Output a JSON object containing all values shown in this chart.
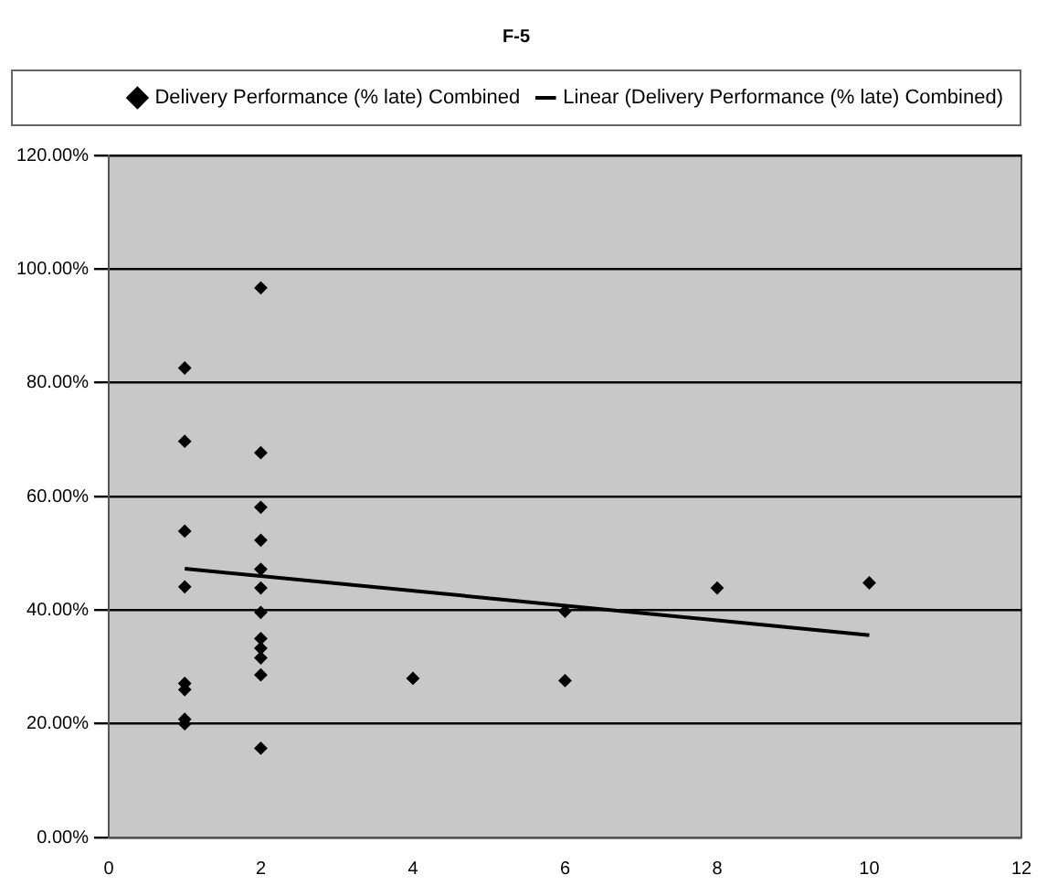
{
  "chart_data": {
    "type": "scatter",
    "title": "F-5",
    "series": [
      {
        "name": "Delivery Performance (% late) Combined",
        "marker": "diamond",
        "color": "#000000",
        "x": [
          1,
          1,
          1,
          1,
          1,
          1,
          1,
          1,
          2,
          2,
          2,
          2,
          2,
          2,
          2,
          2,
          2,
          2,
          2,
          2,
          4,
          6,
          6,
          8,
          10
        ],
        "values": [
          82.6,
          69.7,
          53.9,
          44.1,
          27.1,
          26,
          20.8,
          20,
          96.7,
          67.7,
          58.1,
          52.3,
          47.2,
          43.9,
          39.6,
          35,
          33.3,
          31.6,
          28.6,
          15.7,
          28,
          39.8,
          27.6,
          43.9,
          44.8
        ]
      },
      {
        "name": "Linear (Delivery Performance (% late) Combined)",
        "type": "line",
        "marker": "none",
        "line_style": "solid",
        "color": "#000000",
        "x": [
          1,
          10
        ],
        "values": [
          47.3,
          35.6
        ]
      }
    ],
    "xlim": [
      0,
      12
    ],
    "xticks": [
      0,
      2,
      4,
      6,
      8,
      10,
      12
    ],
    "ylim": [
      0,
      120
    ],
    "yticks": [
      {
        "value": 0,
        "label": "0.00%"
      },
      {
        "value": 20,
        "label": "20.00%"
      },
      {
        "value": 40,
        "label": "40.00%"
      },
      {
        "value": 60,
        "label": "60.00%"
      },
      {
        "value": 80,
        "label": "80.00%"
      },
      {
        "value": 100,
        "label": "100.00%"
      },
      {
        "value": 120,
        "label": "120.00%"
      }
    ],
    "grid": "y",
    "legend": "top right"
  }
}
